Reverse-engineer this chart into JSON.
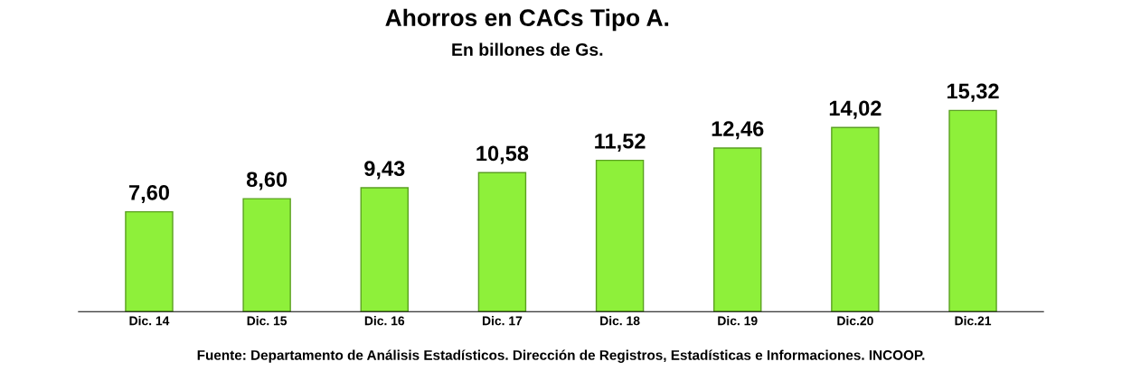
{
  "chart_data": {
    "type": "bar",
    "title": "Ahorros en CACs Tipo A.",
    "subtitle": "En billones de Gs.",
    "categories": [
      "Dic. 14",
      "Dic. 15",
      "Dic. 16",
      "Dic. 17",
      "Dic. 18",
      "Dic. 19",
      "Dic.20",
      "Dic.21"
    ],
    "values": [
      7.6,
      8.6,
      9.43,
      10.58,
      11.52,
      12.46,
      14.02,
      15.32
    ],
    "value_labels": [
      "7,60",
      "8,60",
      "9,43",
      "10,58",
      "11,52",
      "12,46",
      "14,02",
      "15,32"
    ],
    "color": "#8ef03a",
    "annotations": [
      "Fuente: Departamento de Análisis Estadísticos. Dirección de Registros, Estadísticas e Informaciones. INCOOP."
    ],
    "grid": false,
    "legend": false
  }
}
